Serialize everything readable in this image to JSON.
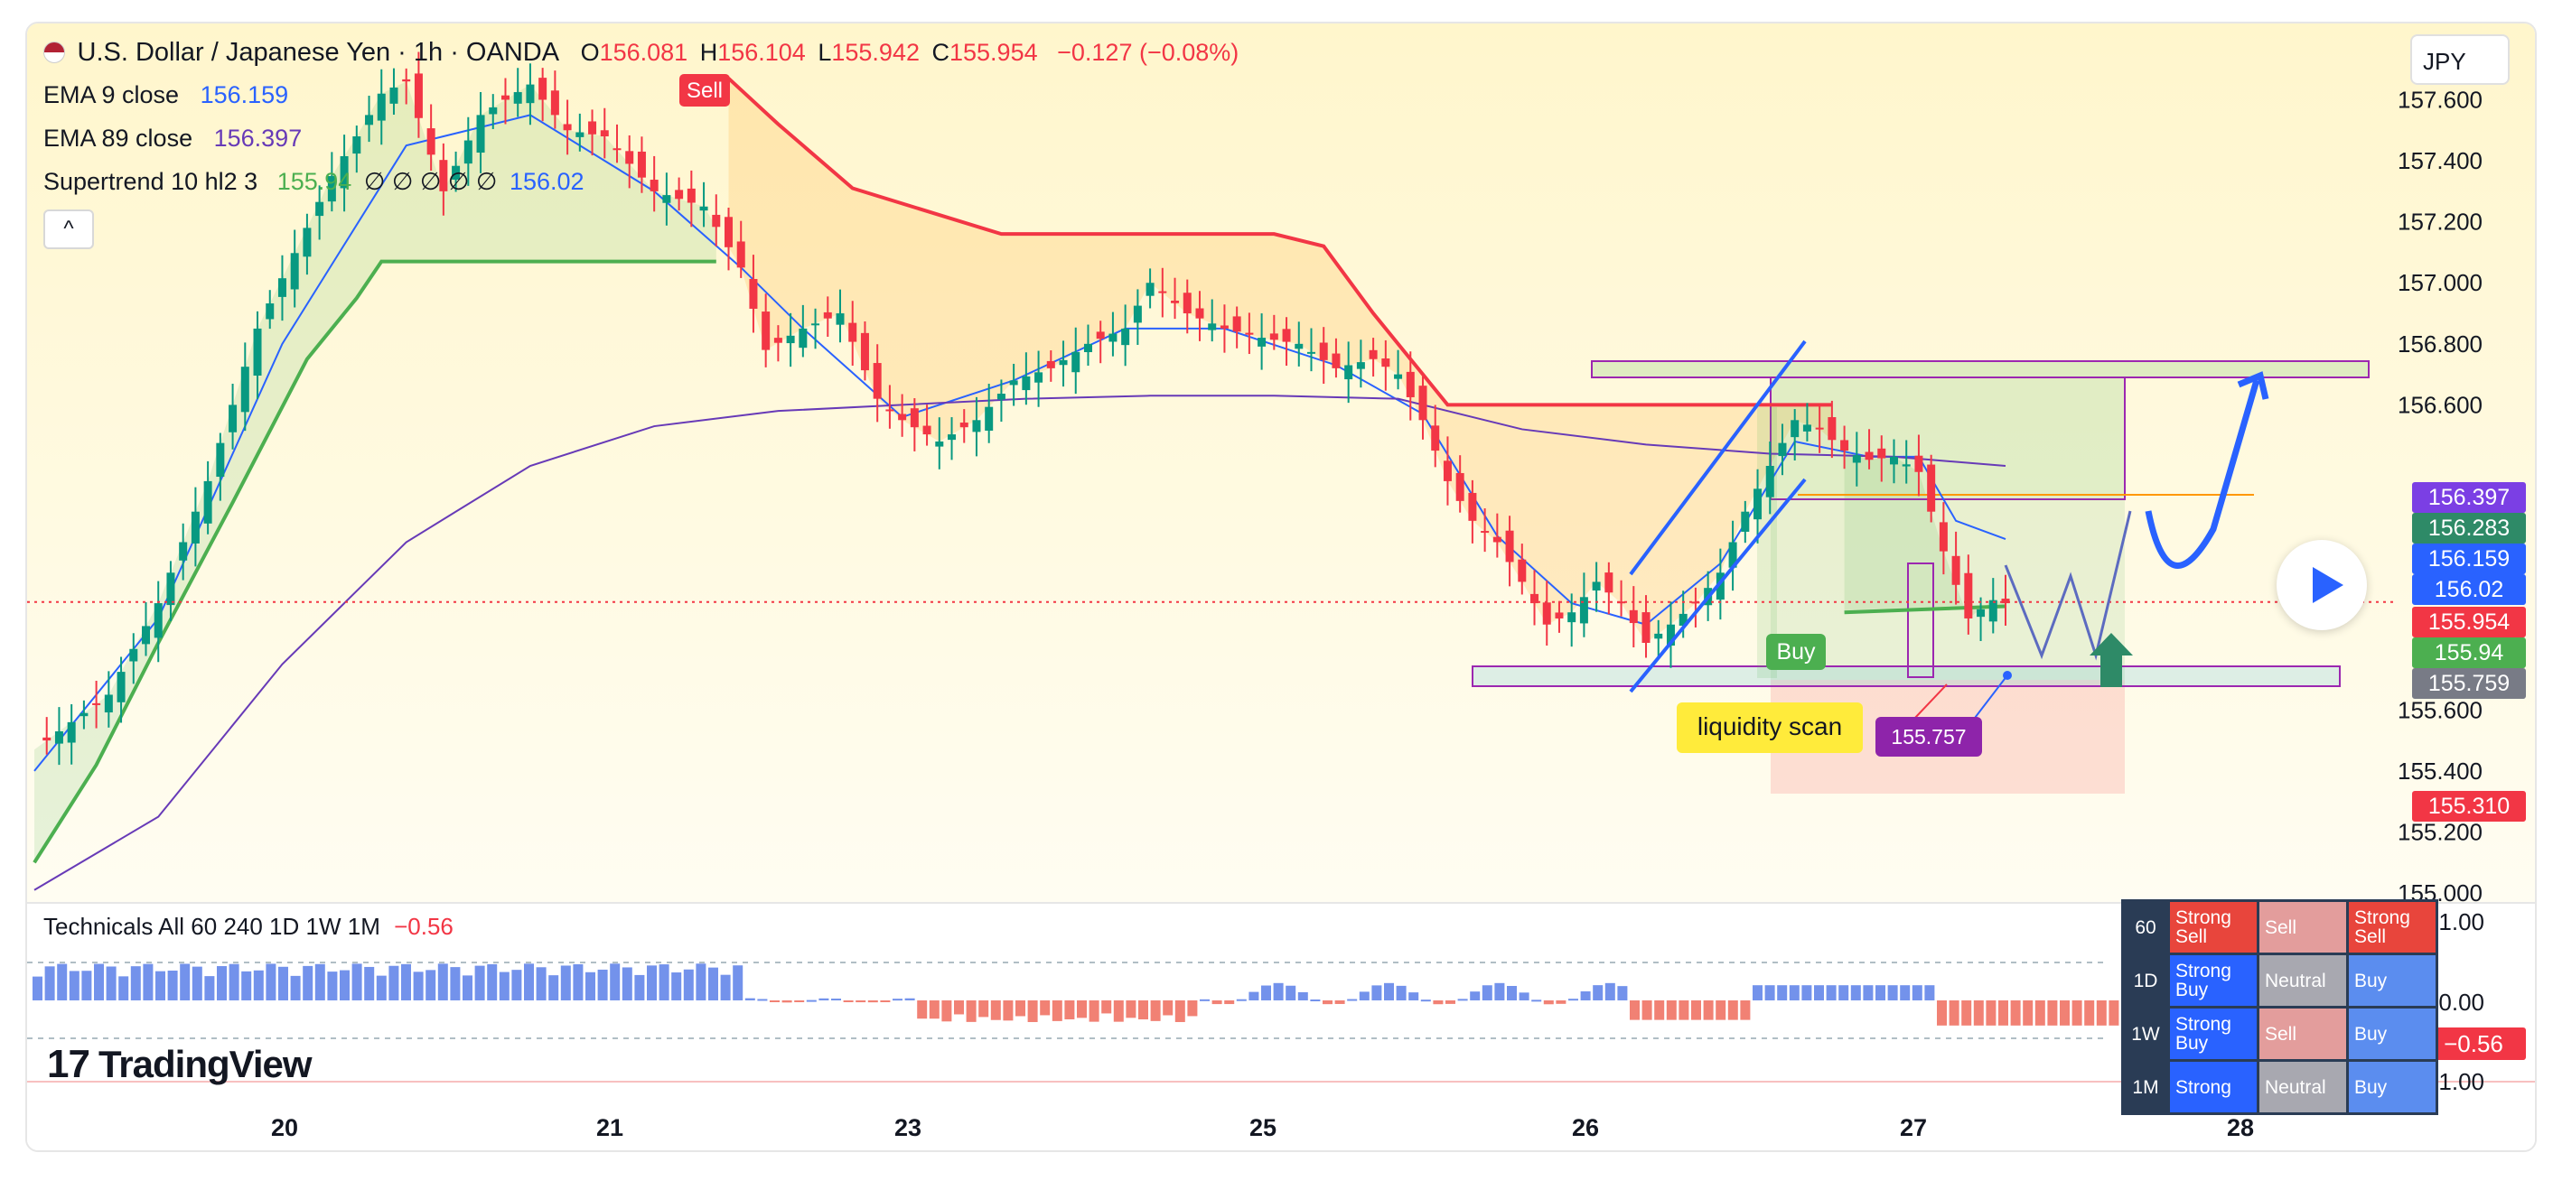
{
  "symbol": {
    "name": "U.S. Dollar / Japanese Yen · 1h · OANDA",
    "open_label": "O",
    "open": "156.081",
    "high_label": "H",
    "high": "156.104",
    "low_label": "L",
    "low": "155.942",
    "close_label": "C",
    "close": "155.954",
    "change": "−0.127 (−0.08%)"
  },
  "indicators": {
    "ema9": {
      "label": "EMA 9 close",
      "value": "156.159"
    },
    "ema89": {
      "label": "EMA 89 close",
      "value": "156.397"
    },
    "supertrend": {
      "label": "Supertrend 10 hl2 3",
      "value1": "155.94",
      "placeholders": "∅ ∅ ∅ ∅ ∅",
      "value2": "156.02"
    },
    "collapse_icon": "chevron-up-icon"
  },
  "currency_button": "JPY",
  "chart_data": {
    "type": "line",
    "title": "U.S. Dollar / Japanese Yen · 1h · OANDA",
    "x_ticks": [
      "20",
      "21",
      "23",
      "25",
      "26",
      "27",
      "28"
    ],
    "y_ticks": [
      "157.600",
      "157.400",
      "157.200",
      "157.000",
      "156.800",
      "156.600",
      "155.600",
      "155.400",
      "155.200",
      "155.000"
    ],
    "ylim": [
      154.95,
      157.85
    ],
    "series": [
      {
        "name": "Close",
        "color": "#089981",
        "points": [
          [
            0,
            155.47
          ],
          [
            6,
            155.65
          ],
          [
            10,
            155.95
          ],
          [
            14,
            156.35
          ],
          [
            18,
            156.85
          ],
          [
            22,
            157.18
          ],
          [
            24,
            157.35
          ],
          [
            26,
            157.48
          ],
          [
            28,
            157.62
          ],
          [
            30,
            157.66
          ],
          [
            33,
            157.3
          ],
          [
            36,
            157.55
          ],
          [
            40,
            157.65
          ],
          [
            43,
            157.5
          ],
          [
            46,
            157.48
          ],
          [
            50,
            157.3
          ],
          [
            54,
            157.25
          ],
          [
            57,
            157.05
          ],
          [
            59,
            156.78
          ],
          [
            62,
            156.85
          ],
          [
            65,
            156.9
          ],
          [
            68,
            156.62
          ],
          [
            70,
            156.55
          ],
          [
            73,
            156.48
          ],
          [
            76,
            156.55
          ],
          [
            79,
            156.68
          ],
          [
            82,
            156.72
          ],
          [
            85,
            156.8
          ],
          [
            88,
            156.85
          ],
          [
            90,
            157.0
          ],
          [
            93,
            156.9
          ],
          [
            96,
            156.85
          ],
          [
            99,
            156.82
          ],
          [
            102,
            156.8
          ],
          [
            105,
            156.72
          ],
          [
            108,
            156.75
          ],
          [
            110,
            156.7
          ],
          [
            112,
            156.55
          ],
          [
            114,
            156.35
          ],
          [
            116,
            156.22
          ],
          [
            118,
            156.15
          ],
          [
            120,
            156.02
          ],
          [
            122,
            155.88
          ],
          [
            124,
            155.92
          ],
          [
            126,
            156.02
          ],
          [
            128,
            155.95
          ],
          [
            130,
            155.82
          ],
          [
            132,
            155.88
          ],
          [
            134,
            155.95
          ],
          [
            136,
            156.05
          ],
          [
            138,
            156.25
          ],
          [
            140,
            156.4
          ],
          [
            142,
            156.55
          ],
          [
            144,
            156.52
          ],
          [
            146,
            156.45
          ],
          [
            148,
            156.42
          ],
          [
            150,
            156.43
          ],
          [
            152,
            156.38
          ],
          [
            154,
            156.12
          ],
          [
            156,
            155.9
          ],
          [
            158,
            155.96
          ],
          [
            159,
            155.95
          ]
        ]
      },
      {
        "name": "EMA 9",
        "color": "#2962ff",
        "points": [
          [
            0,
            155.4
          ],
          [
            10,
            155.9
          ],
          [
            20,
            156.8
          ],
          [
            30,
            157.45
          ],
          [
            40,
            157.55
          ],
          [
            50,
            157.3
          ],
          [
            57,
            157.05
          ],
          [
            62,
            156.85
          ],
          [
            70,
            156.56
          ],
          [
            79,
            156.68
          ],
          [
            88,
            156.85
          ],
          [
            96,
            156.85
          ],
          [
            105,
            156.73
          ],
          [
            112,
            156.57
          ],
          [
            118,
            156.17
          ],
          [
            124,
            155.95
          ],
          [
            130,
            155.88
          ],
          [
            136,
            156.08
          ],
          [
            142,
            156.48
          ],
          [
            148,
            156.43
          ],
          [
            152,
            156.43
          ],
          [
            155,
            156.22
          ],
          [
            159,
            156.16
          ]
        ]
      },
      {
        "name": "EMA 89",
        "color": "#673ab7",
        "points": [
          [
            0,
            155.01
          ],
          [
            10,
            155.25
          ],
          [
            20,
            155.75
          ],
          [
            30,
            156.15
          ],
          [
            40,
            156.4
          ],
          [
            50,
            156.53
          ],
          [
            60,
            156.58
          ],
          [
            70,
            156.6
          ],
          [
            80,
            156.62
          ],
          [
            90,
            156.63
          ],
          [
            100,
            156.63
          ],
          [
            110,
            156.62
          ],
          [
            120,
            156.52
          ],
          [
            130,
            156.47
          ],
          [
            140,
            156.44
          ],
          [
            150,
            156.43
          ],
          [
            159,
            156.4
          ]
        ]
      },
      {
        "name": "Supertrend",
        "color": "#4caf50",
        "points": [
          [
            0,
            155.1
          ],
          [
            5,
            155.42
          ],
          [
            10,
            155.82
          ],
          [
            16,
            156.28
          ],
          [
            22,
            156.75
          ],
          [
            26,
            156.95
          ],
          [
            28,
            157.07
          ],
          [
            55,
            157.07
          ],
          [
            56,
            157.67
          ],
          [
            60,
            157.52
          ],
          [
            66,
            157.31
          ],
          [
            78,
            157.16
          ],
          [
            100,
            157.16
          ],
          [
            104,
            157.12
          ],
          [
            108,
            156.9
          ],
          [
            114,
            156.6
          ],
          [
            140,
            156.6
          ],
          [
            145,
            156.6
          ],
          [
            146,
            155.92
          ],
          [
            159,
            155.94
          ]
        ]
      }
    ]
  },
  "annotations": {
    "sell_label": "Sell",
    "buy_label": "Buy",
    "liquidity_label": "liquidity scan",
    "level_label": "155.757"
  },
  "axis_tags": [
    {
      "value": "156.397",
      "color": "#7b3fe4"
    },
    {
      "value": "156.283",
      "color": "#2e8a67"
    },
    {
      "value": "156.159",
      "color": "#2962ff"
    },
    {
      "value": "156.02",
      "color": "#2962ff"
    },
    {
      "value": "155.954",
      "color": "#f23645"
    },
    {
      "value": "155.94",
      "color": "#4caf50"
    },
    {
      "value": "155.759",
      "color": "#787b86"
    },
    {
      "value": "155.310",
      "color": "#f23645"
    }
  ],
  "technicals": {
    "label": "Technicals All 60 240 1D 1W 1M",
    "value": "−0.56",
    "y_ticks": [
      "1.00",
      "0.00",
      "−1.00"
    ],
    "current_tag": "−0.56",
    "table": [
      {
        "tf": "60",
        "cells": [
          {
            "t": "Strong Sell",
            "c": "#e8453c"
          },
          {
            "t": "Sell",
            "c": "#e39d9c"
          },
          {
            "t": "Strong Sell",
            "c": "#e8453c"
          }
        ]
      },
      {
        "tf": "1D",
        "cells": [
          {
            "t": "Strong Buy",
            "c": "#2962ff"
          },
          {
            "t": "Neutral",
            "c": "#a8a8b0"
          },
          {
            "t": "Buy",
            "c": "#5b8def"
          }
        ]
      },
      {
        "tf": "1W",
        "cells": [
          {
            "t": "Strong Buy",
            "c": "#2962ff"
          },
          {
            "t": "Sell",
            "c": "#e39d9c"
          },
          {
            "t": "Buy",
            "c": "#5b8def"
          }
        ]
      },
      {
        "tf": "1M",
        "cells": [
          {
            "t": "Strong",
            "c": "#2962ff"
          },
          {
            "t": "Neutral",
            "c": "#a8a8b0"
          },
          {
            "t": "Buy",
            "c": "#5b8def"
          }
        ]
      }
    ]
  },
  "branding": {
    "logo_mark": "17",
    "name": "TradingView"
  }
}
